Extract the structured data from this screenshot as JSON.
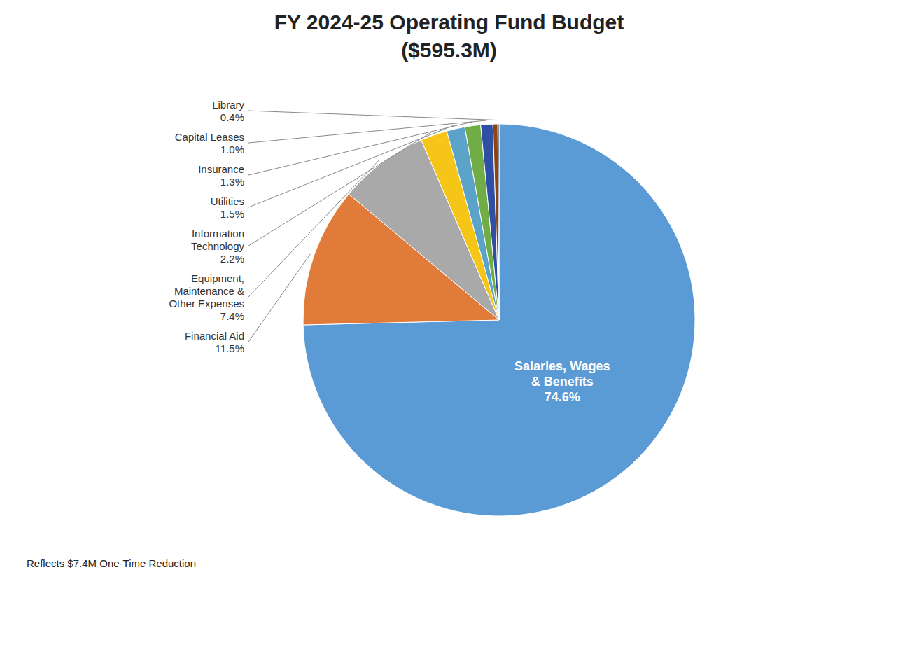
{
  "chart_data": {
    "type": "pie",
    "title": "FY 2024-25 Operating Fund Budget",
    "subtitle": "($595.3M)",
    "categories": [
      "Salaries, Wages\n& Benefits",
      "Financial Aid",
      "Equipment,\nMaintenance &\nOther Expenses",
      "Information\nTechnology",
      "Utilities",
      "Insurance",
      "Capital Leases",
      "Library",
      null
    ],
    "values": [
      74.6,
      11.5,
      7.4,
      2.2,
      1.5,
      1.3,
      1.0,
      0.4,
      0.1
    ],
    "value_labels": [
      "74.6%",
      "11.5%",
      "7.4%",
      "2.2%",
      "1.5%",
      "1.3%",
      "1.0%",
      "0.4%",
      null
    ],
    "colors": [
      "#5b9bd5",
      "#e07b3a",
      "#a9a9a9",
      "#f5c518",
      "#5ba3c9",
      "#70ad47",
      "#2e4fa3",
      "#8B4513",
      "#1a1a2e"
    ],
    "data_labels": true,
    "annotations": [
      "Reflects $7.4M One-Time Reduction"
    ]
  }
}
